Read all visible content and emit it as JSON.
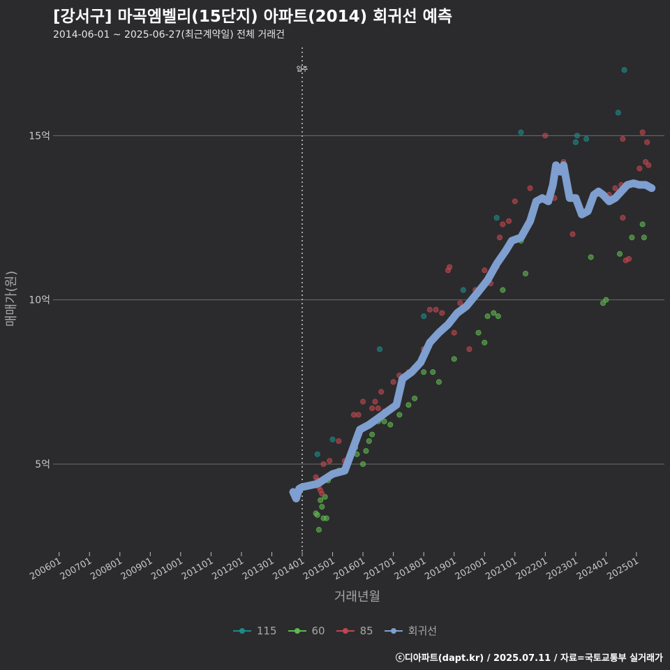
{
  "header": {
    "title": "[강서구] 마곡엠벨리(15단지) 아파트(2014) 회귀선 예측",
    "subtitle": "2014-06-01 ~ 2025-06-27(최근계약일) 전체 거래건"
  },
  "caption": "ⓒ디아파트(dapt.kr) / 2025.07.11 / 자료=국토교통부 실거래가",
  "colors": {
    "background": "#2b2b2d",
    "grid": "#6e6e6e",
    "s115": "#1f8a88",
    "s60": "#5fb84f",
    "s85": "#c0474f",
    "regression": "#7e9fcf",
    "vline": "#d0d0d0"
  },
  "chart_data": {
    "type": "scatter",
    "xlabel": "거래년월",
    "ylabel": "매매가(원)",
    "xlim": [
      2005.8,
      2025.92
    ],
    "ylim": [
      2.3,
      17.6
    ],
    "y_unit": "억",
    "yticks": [
      {
        "value": 5,
        "label": "5억"
      },
      {
        "value": 10,
        "label": "10억"
      },
      {
        "value": 15,
        "label": "15억"
      }
    ],
    "xticks": [
      {
        "value": 2006,
        "label": "200601"
      },
      {
        "value": 2007,
        "label": "200701"
      },
      {
        "value": 2008,
        "label": "200801"
      },
      {
        "value": 2009,
        "label": "200901"
      },
      {
        "value": 2010,
        "label": "201001"
      },
      {
        "value": 2011,
        "label": "201101"
      },
      {
        "value": 2012,
        "label": "201201"
      },
      {
        "value": 2013,
        "label": "201301"
      },
      {
        "value": 2014,
        "label": "201401"
      },
      {
        "value": 2015,
        "label": "201501"
      },
      {
        "value": 2016,
        "label": "201601"
      },
      {
        "value": 2017,
        "label": "201701"
      },
      {
        "value": 2018,
        "label": "201801"
      },
      {
        "value": 2019,
        "label": "201901"
      },
      {
        "value": 2020,
        "label": "202001"
      },
      {
        "value": 2021,
        "label": "202101"
      },
      {
        "value": 2022,
        "label": "202201"
      },
      {
        "value": 2023,
        "label": "202301"
      },
      {
        "value": 2024,
        "label": "202401"
      },
      {
        "value": 2025,
        "label": "202501"
      }
    ],
    "annotation": {
      "x": 2014.0,
      "label": "입주"
    },
    "legend_position": "bottom",
    "series": [
      {
        "name": "115",
        "key": "s115",
        "points": [
          [
            2014.5,
            5.3
          ],
          [
            2015.0,
            5.75
          ],
          [
            2016.55,
            8.5
          ],
          [
            2018.0,
            9.5
          ],
          [
            2019.3,
            10.3
          ],
          [
            2020.4,
            12.5
          ],
          [
            2021.2,
            15.1
          ],
          [
            2023.0,
            14.8
          ],
          [
            2023.05,
            15.0
          ],
          [
            2023.35,
            14.9
          ],
          [
            2024.4,
            15.7
          ],
          [
            2024.6,
            17.0
          ]
        ]
      },
      {
        "name": "60",
        "key": "s60",
        "points": [
          [
            2014.45,
            3.5
          ],
          [
            2014.5,
            3.45
          ],
          [
            2014.55,
            3.0
          ],
          [
            2014.6,
            3.9
          ],
          [
            2014.65,
            3.7
          ],
          [
            2014.7,
            3.35
          ],
          [
            2014.8,
            3.35
          ],
          [
            2014.75,
            4.0
          ],
          [
            2014.85,
            4.5
          ],
          [
            2015.2,
            4.8
          ],
          [
            2015.5,
            5.0
          ],
          [
            2015.75,
            5.5
          ],
          [
            2015.8,
            5.3
          ],
          [
            2016.0,
            5.0
          ],
          [
            2016.1,
            5.4
          ],
          [
            2016.2,
            5.7
          ],
          [
            2016.3,
            5.9
          ],
          [
            2016.5,
            6.3
          ],
          [
            2016.7,
            6.3
          ],
          [
            2016.9,
            6.2
          ],
          [
            2017.2,
            6.5
          ],
          [
            2017.5,
            6.8
          ],
          [
            2017.7,
            7.0
          ],
          [
            2018.0,
            7.8
          ],
          [
            2018.3,
            7.8
          ],
          [
            2018.5,
            7.5
          ],
          [
            2019.0,
            8.2
          ],
          [
            2019.8,
            9.0
          ],
          [
            2020.0,
            8.7
          ],
          [
            2020.1,
            9.5
          ],
          [
            2020.3,
            9.6
          ],
          [
            2020.45,
            9.5
          ],
          [
            2020.6,
            10.3
          ],
          [
            2021.2,
            11.8
          ],
          [
            2021.3,
            12.0
          ],
          [
            2021.35,
            10.8
          ],
          [
            2023.5,
            11.3
          ],
          [
            2023.9,
            9.9
          ],
          [
            2024.0,
            10.0
          ],
          [
            2024.45,
            11.4
          ],
          [
            2024.85,
            11.9
          ],
          [
            2025.2,
            12.3
          ],
          [
            2025.25,
            11.9
          ]
        ]
      },
      {
        "name": "85",
        "key": "s85",
        "points": [
          [
            2014.45,
            4.6
          ],
          [
            2014.5,
            4.5
          ],
          [
            2014.55,
            4.3
          ],
          [
            2014.6,
            4.2
          ],
          [
            2014.65,
            4.1
          ],
          [
            2014.7,
            5.0
          ],
          [
            2014.9,
            5.1
          ],
          [
            2015.2,
            5.7
          ],
          [
            2015.4,
            5.1
          ],
          [
            2015.7,
            6.5
          ],
          [
            2015.85,
            6.5
          ],
          [
            2016.0,
            6.9
          ],
          [
            2016.3,
            6.7
          ],
          [
            2016.4,
            6.9
          ],
          [
            2016.5,
            6.7
          ],
          [
            2016.6,
            7.2
          ],
          [
            2016.7,
            6.6
          ],
          [
            2017.0,
            7.5
          ],
          [
            2017.2,
            7.7
          ],
          [
            2017.5,
            7.8
          ],
          [
            2017.8,
            8.0
          ],
          [
            2018.0,
            8.5
          ],
          [
            2018.2,
            9.7
          ],
          [
            2018.4,
            9.7
          ],
          [
            2018.6,
            9.6
          ],
          [
            2018.8,
            10.9
          ],
          [
            2018.85,
            11.0
          ],
          [
            2019.0,
            9.0
          ],
          [
            2019.2,
            9.9
          ],
          [
            2019.5,
            8.5
          ],
          [
            2019.7,
            10.3
          ],
          [
            2020.0,
            10.9
          ],
          [
            2020.2,
            10.5
          ],
          [
            2020.4,
            11.0
          ],
          [
            2020.5,
            11.9
          ],
          [
            2020.6,
            12.3
          ],
          [
            2020.8,
            12.4
          ],
          [
            2021.0,
            13.0
          ],
          [
            2021.5,
            13.4
          ],
          [
            2022.0,
            15.0
          ],
          [
            2022.3,
            13.1
          ],
          [
            2022.6,
            14.2
          ],
          [
            2022.9,
            12.0
          ],
          [
            2023.8,
            13.3
          ],
          [
            2024.1,
            13.2
          ],
          [
            2024.3,
            13.4
          ],
          [
            2024.5,
            13.5
          ],
          [
            2024.55,
            12.5
          ],
          [
            2024.55,
            14.9
          ],
          [
            2024.65,
            11.2
          ],
          [
            2024.75,
            11.25
          ],
          [
            2025.0,
            13.5
          ],
          [
            2025.1,
            14.0
          ],
          [
            2025.2,
            15.1
          ],
          [
            2025.3,
            14.2
          ],
          [
            2025.35,
            14.8
          ],
          [
            2025.4,
            14.1
          ]
        ]
      }
    ],
    "regression": {
      "name": "회귀선",
      "key": "regression",
      "points": [
        [
          2013.7,
          4.15
        ],
        [
          2013.8,
          3.95
        ],
        [
          2013.9,
          4.25
        ],
        [
          2014.0,
          4.3
        ],
        [
          2014.5,
          4.4
        ],
        [
          2015.0,
          4.7
        ],
        [
          2015.4,
          4.8
        ],
        [
          2015.6,
          5.3
        ],
        [
          2015.9,
          6.05
        ],
        [
          2016.2,
          6.2
        ],
        [
          2016.5,
          6.4
        ],
        [
          2016.8,
          6.6
        ],
        [
          2017.1,
          6.8
        ],
        [
          2017.3,
          7.6
        ],
        [
          2017.6,
          7.8
        ],
        [
          2017.9,
          8.1
        ],
        [
          2018.2,
          8.7
        ],
        [
          2018.5,
          9.0
        ],
        [
          2018.8,
          9.25
        ],
        [
          2019.1,
          9.6
        ],
        [
          2019.4,
          9.8
        ],
        [
          2019.8,
          10.25
        ],
        [
          2020.1,
          10.6
        ],
        [
          2020.4,
          11.1
        ],
        [
          2020.7,
          11.5
        ],
        [
          2020.9,
          11.8
        ],
        [
          2021.2,
          11.9
        ],
        [
          2021.5,
          12.4
        ],
        [
          2021.7,
          13.0
        ],
        [
          2021.9,
          13.1
        ],
        [
          2022.1,
          13.0
        ],
        [
          2022.25,
          13.5
        ],
        [
          2022.35,
          14.1
        ],
        [
          2022.5,
          13.9
        ],
        [
          2022.6,
          14.1
        ],
        [
          2022.8,
          13.1
        ],
        [
          2023.0,
          13.1
        ],
        [
          2023.2,
          12.6
        ],
        [
          2023.4,
          12.7
        ],
        [
          2023.6,
          13.2
        ],
        [
          2023.75,
          13.3
        ],
        [
          2023.9,
          13.2
        ],
        [
          2024.1,
          13.0
        ],
        [
          2024.3,
          13.1
        ],
        [
          2024.5,
          13.3
        ],
        [
          2024.7,
          13.5
        ],
        [
          2024.9,
          13.55
        ],
        [
          2025.1,
          13.5
        ],
        [
          2025.3,
          13.5
        ],
        [
          2025.5,
          13.4
        ]
      ]
    }
  }
}
